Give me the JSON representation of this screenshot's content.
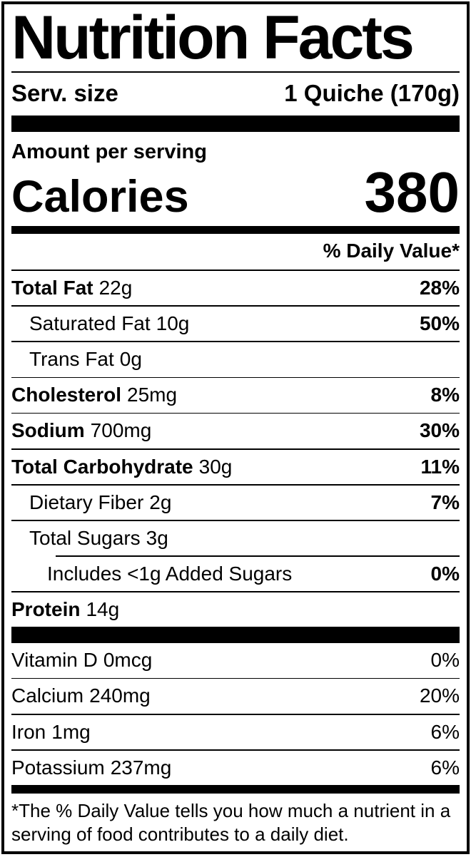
{
  "label": {
    "title": "Nutrition Facts",
    "serving": {
      "label": "Serv. size",
      "value": "1 Quiche (170g)"
    },
    "amount_per_serving": "Amount per serving",
    "calories": {
      "label": "Calories",
      "value": "380"
    },
    "daily_value_header": "% Daily Value*",
    "nutrients": [
      {
        "name": "Total Fat",
        "amount": "22g",
        "dv": "28%"
      },
      {
        "name": "Saturated Fat",
        "amount": "10g",
        "dv": "50%"
      },
      {
        "name": "Trans Fat",
        "amount": "0g",
        "dv": ""
      },
      {
        "name": "Cholesterol",
        "amount": "25mg",
        "dv": "8%"
      },
      {
        "name": "Sodium",
        "amount": "700mg",
        "dv": "30%"
      },
      {
        "name": "Total Carbohydrate",
        "amount": "30g",
        "dv": "11%"
      },
      {
        "name": "Dietary Fiber",
        "amount": "2g",
        "dv": "7%"
      },
      {
        "name": "Total Sugars",
        "amount": "3g",
        "dv": ""
      },
      {
        "name": "Includes <1g Added Sugars",
        "amount": "",
        "dv": "0%"
      },
      {
        "name": "Protein",
        "amount": "14g",
        "dv": ""
      }
    ],
    "vitamins": [
      {
        "name": "Vitamin D",
        "amount": "0mcg",
        "dv": "0%"
      },
      {
        "name": "Calcium",
        "amount": "240mg",
        "dv": "20%"
      },
      {
        "name": "Iron",
        "amount": "1mg",
        "dv": "6%"
      },
      {
        "name": "Potassium",
        "amount": "237mg",
        "dv": "6%"
      }
    ],
    "footnote": "*The % Daily Value tells you how much a nutrient in a serving of food contributes to a daily diet.",
    "colors": {
      "ink": "#000000",
      "paper": "#ffffff"
    }
  }
}
